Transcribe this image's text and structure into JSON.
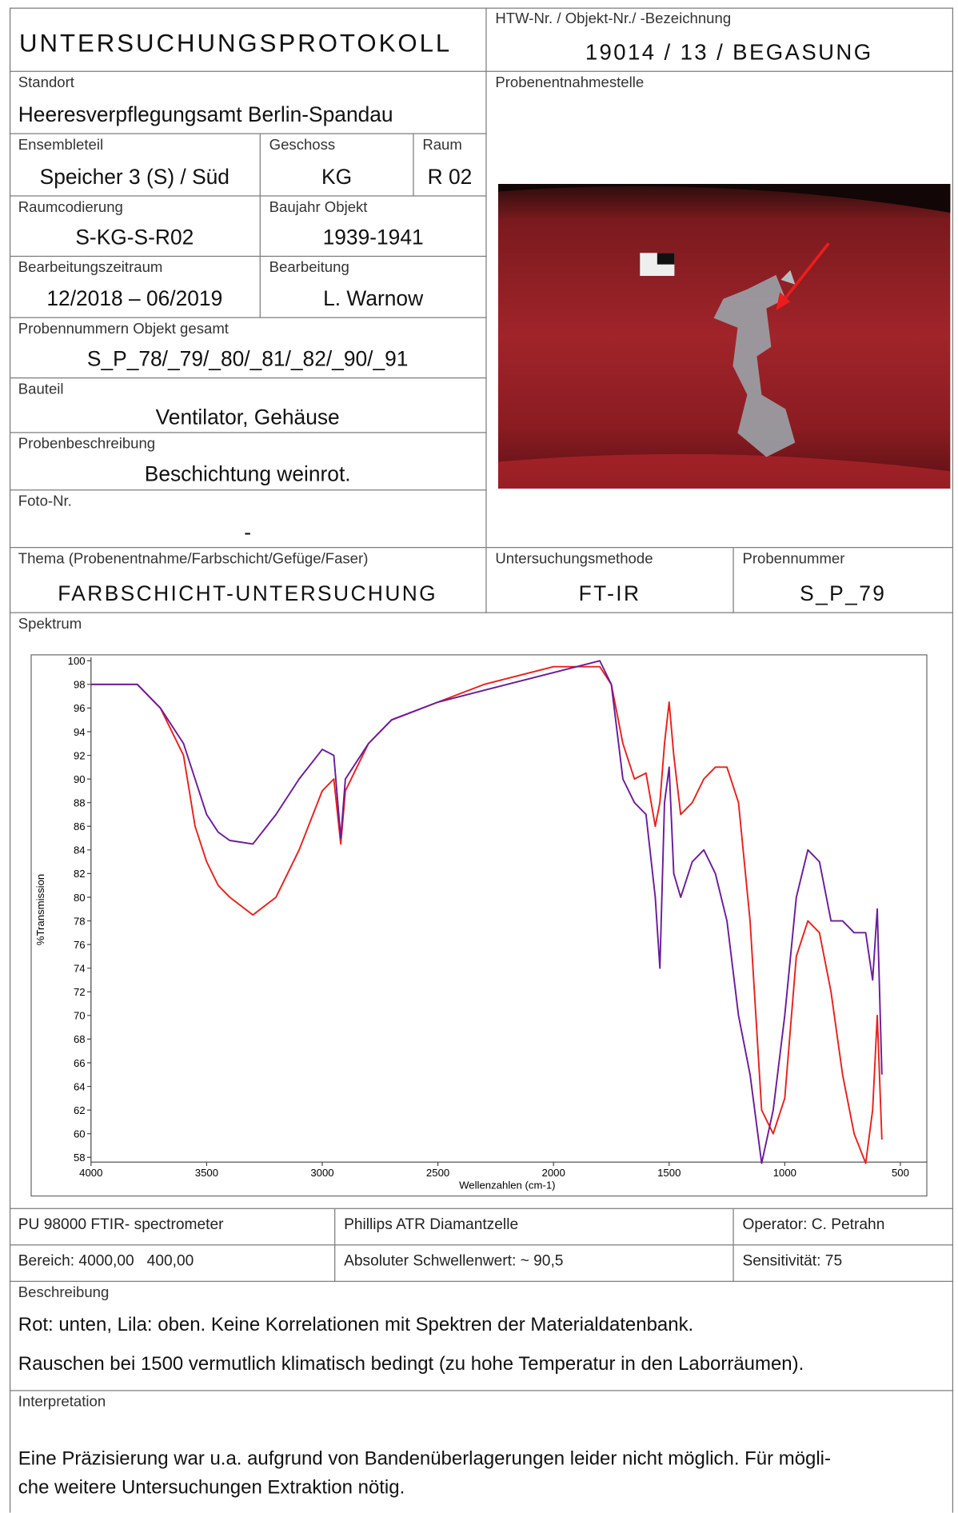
{
  "header": {
    "title": "UNTERSUCHUNGSPROTOKOLL",
    "id_label": "HTW-Nr. / Objekt-Nr./ -Bezeichnung",
    "id_value": "19014 / 13 / BEGASUNG"
  },
  "standort": {
    "label": "Standort",
    "value": "Heeresverpflegungsamt Berlin-Spandau"
  },
  "ensembleteil": {
    "label": "Ensembleteil",
    "value": "Speicher 3 (S) / Süd"
  },
  "geschoss": {
    "label": "Geschoss",
    "value": "KG"
  },
  "raum": {
    "label": "Raum",
    "value": "R 02"
  },
  "raumcodierung": {
    "label": "Raumcodierung",
    "value": "S-KG-S-R02"
  },
  "baujahr": {
    "label": "Baujahr Objekt",
    "value": "1939-1941"
  },
  "zeitraum": {
    "label": "Bearbeitungszeitraum",
    "value": "12/2018 – 06/2019"
  },
  "bearbeitung": {
    "label": "Bearbeitung",
    "value": "L. Warnow"
  },
  "probennummern": {
    "label": "Probennummern Objekt gesamt",
    "value": "S_P_78/_79/_80/_81/_82/_90/_91"
  },
  "bauteil": {
    "label": "Bauteil",
    "value": "Ventilator, Gehäuse"
  },
  "probenbeschreibung": {
    "label": "Probenbeschreibung",
    "value": "Beschichtung weinrot."
  },
  "foto": {
    "label": "Foto-Nr.",
    "value": "-"
  },
  "entnahmestelle": {
    "label": "Probenentnahmestelle"
  },
  "thema": {
    "label": "Thema (Probenentnahme/Farbschicht/Gefüge/Faser)",
    "value": "FARBSCHICHT-UNTERSUCHUNG"
  },
  "methode": {
    "label": "Untersuchungsmethode",
    "value": "FT-IR"
  },
  "probennummer": {
    "label": "Probennummer",
    "value": "S_P_79"
  },
  "spektrum": {
    "label": "Spektrum"
  },
  "chart_data": {
    "type": "line",
    "y_label": "%Transmission",
    "x_label": "Wellenzahlen (cm-1)",
    "x": [
      4000,
      3800,
      3700,
      3600,
      3550,
      3500,
      3450,
      3400,
      3300,
      3200,
      3100,
      3000,
      2950,
      2920,
      2900,
      2850,
      2800,
      2700,
      2500,
      2300,
      2000,
      1800,
      1750,
      1700,
      1650,
      1600,
      1560,
      1540,
      1520,
      1500,
      1480,
      1450,
      1400,
      1350,
      1300,
      1250,
      1200,
      1150,
      1100,
      1050,
      1000,
      950,
      900,
      850,
      800,
      750,
      700,
      650,
      620,
      600,
      580
    ],
    "series": [
      {
        "color": "#e8201c",
        "values": [
          98,
          98,
          96,
          92,
          86,
          83,
          81,
          80,
          78.5,
          80,
          84,
          89,
          90,
          84.5,
          89,
          91,
          93,
          95,
          96.5,
          98,
          99.5,
          99.5,
          98,
          93,
          90,
          90.5,
          86,
          88,
          93,
          96.5,
          92,
          87,
          88,
          90,
          91,
          91,
          88,
          78,
          62,
          60,
          63,
          75,
          78,
          77,
          72,
          65,
          60,
          57.5,
          62,
          70,
          59.5
        ]
      },
      {
        "color": "#6a1b9a",
        "values": [
          98,
          98,
          96,
          93,
          90,
          87,
          85.5,
          84.8,
          84.5,
          87,
          90,
          92.5,
          92,
          85,
          90,
          91.5,
          93,
          95,
          96.5,
          97.5,
          99,
          100,
          98,
          90,
          88,
          87,
          80,
          74,
          88,
          91,
          82,
          80,
          83,
          84,
          82,
          78,
          70,
          65,
          57.5,
          62,
          70,
          80,
          84,
          83,
          78,
          78,
          77,
          77,
          73,
          79,
          65
        ]
      }
    ],
    "xlim": [
      4000,
      400
    ],
    "ylim": [
      57.6,
      100.3
    ],
    "xticks": [
      4000,
      3500,
      3000,
      2500,
      2000,
      1500,
      1000,
      500
    ],
    "yticks": [
      58,
      60,
      62,
      64,
      66,
      68,
      70,
      72,
      74,
      76,
      78,
      80,
      82,
      84,
      86,
      88,
      90,
      92,
      94,
      96,
      98,
      100
    ]
  },
  "meta": {
    "rows": [
      [
        "PU 98000 FTIR- spectrometer",
        "Phillips ATR Diamantzelle",
        "Operator: C. Petrahn"
      ],
      [
        "Bereich: 4000,00   400,00",
        "Absoluter Schwellenwert: ~ 90,5",
        "Sensitivität: 75"
      ]
    ]
  },
  "beschreibung": {
    "label": "Beschreibung",
    "lines": [
      "Rot: unten, Lila: oben. Keine Korrelationen mit Spektren der Materialdatenbank.",
      "Rauschen bei 1500 vermutlich klimatisch bedingt (zu hohe Temperatur in den Laborräumen)."
    ]
  },
  "interpretation": {
    "label": "Interpretation",
    "text": "Eine Präzisierung war u.a. aufgrund von Bandenüberlagerungen leider nicht möglich. Für mögli-\nche weitere Untersuchungen Extraktion nötig."
  }
}
